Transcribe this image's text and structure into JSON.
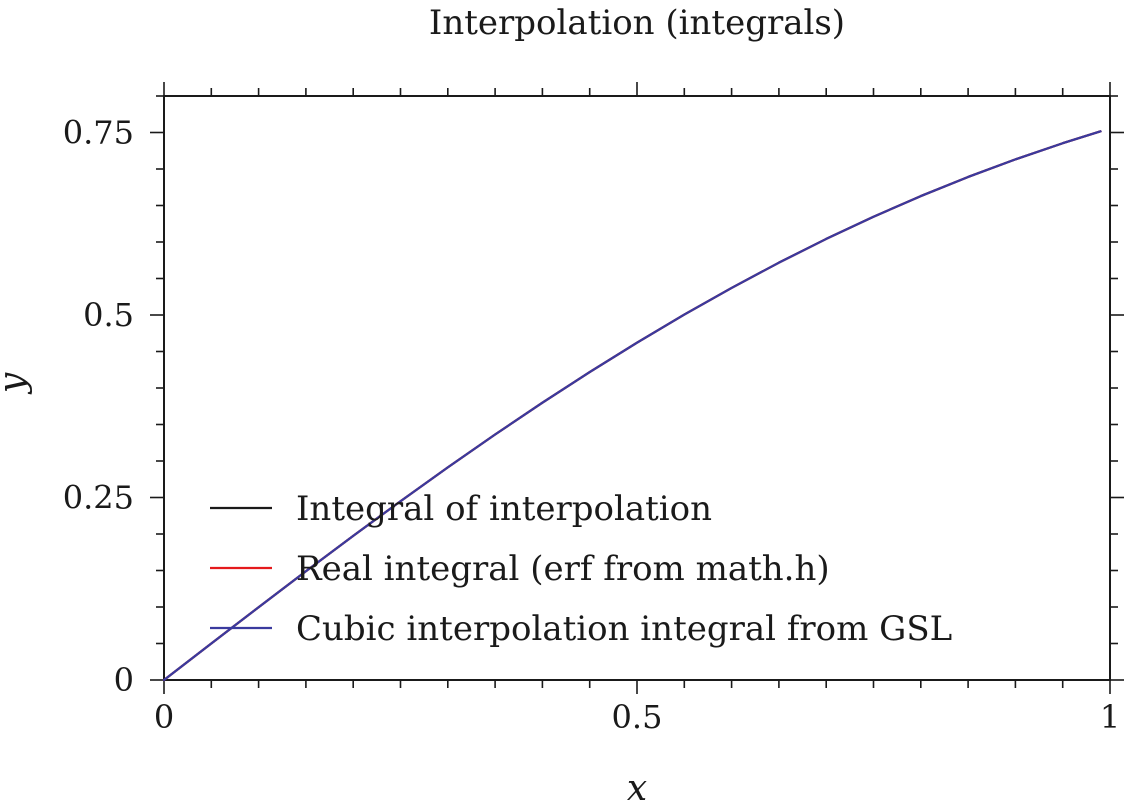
{
  "chart_data": {
    "type": "line",
    "title": "Interpolation (integrals)",
    "xlabel": "x",
    "ylabel": "y",
    "xlim": [
      0,
      1
    ],
    "ylim": [
      0,
      0.8
    ],
    "xticks": [
      0,
      0.5,
      1
    ],
    "xtick_labels": [
      "0",
      "0.5",
      "1"
    ],
    "yticks": [
      0,
      0.25,
      0.5,
      0.75
    ],
    "ytick_labels": [
      "0",
      "0.25",
      "0.5",
      "0.75"
    ],
    "grid": false,
    "legend_position": "bottom-left",
    "series": [
      {
        "name": "Integral of interpolation",
        "color": "#1a1a1a",
        "x": [
          0,
          0.05,
          0.1,
          0.15,
          0.2,
          0.25,
          0.3,
          0.35,
          0.4,
          0.45,
          0.5,
          0.55,
          0.6,
          0.65,
          0.7,
          0.75,
          0.8,
          0.85,
          0.9,
          0.95,
          0.99
        ],
        "y": [
          0,
          0.05,
          0.0997,
          0.1489,
          0.1974,
          0.2449,
          0.2913,
          0.3363,
          0.3799,
          0.4218,
          0.4621,
          0.5006,
          0.5371,
          0.5717,
          0.6042,
          0.6346,
          0.6629,
          0.6891,
          0.7132,
          0.7353,
          0.7516
        ]
      },
      {
        "name": "Real integral (erf from math.h)",
        "color": "#e41a1c",
        "x": [
          0,
          0.05,
          0.1,
          0.15,
          0.2,
          0.25,
          0.3,
          0.35,
          0.4,
          0.45,
          0.5,
          0.55,
          0.6,
          0.65,
          0.7,
          0.75,
          0.8,
          0.85,
          0.9,
          0.95,
          0.99
        ],
        "y": [
          0,
          0.05,
          0.0997,
          0.1489,
          0.1974,
          0.2449,
          0.2913,
          0.3363,
          0.3799,
          0.4218,
          0.4621,
          0.5006,
          0.5371,
          0.5717,
          0.6042,
          0.6346,
          0.6629,
          0.6891,
          0.7132,
          0.7353,
          0.7516
        ]
      },
      {
        "name": "Cubic interpolation integral from GSL",
        "color": "#3a3a9e",
        "x": [
          0,
          0.05,
          0.1,
          0.15,
          0.2,
          0.25,
          0.3,
          0.35,
          0.4,
          0.45,
          0.5,
          0.55,
          0.6,
          0.65,
          0.7,
          0.75,
          0.8,
          0.85,
          0.9,
          0.95,
          0.99
        ],
        "y": [
          0,
          0.05,
          0.0997,
          0.1489,
          0.1974,
          0.2449,
          0.2913,
          0.3363,
          0.3799,
          0.4218,
          0.4621,
          0.5006,
          0.5371,
          0.5717,
          0.6042,
          0.6346,
          0.6629,
          0.6891,
          0.7132,
          0.7353,
          0.7516
        ]
      }
    ]
  }
}
